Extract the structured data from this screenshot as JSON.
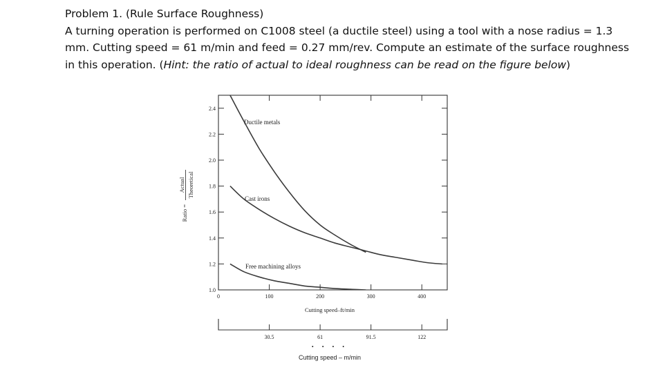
{
  "problem": {
    "title": "Problem 1. (Rule Surface Roughness)",
    "line1": "A turning operation is performed on C1008 steel (a ductile steel) using a tool with a nose radius = 1.3",
    "line2": "mm. Cutting speed = 61 m/min and feed = 0.27 mm/rev. Compute an estimate of the surface roughness",
    "line3_prefix": "in this operation. (",
    "line3_hint": "Hint: the ratio of actual to ideal roughness can be read on the figure below",
    "line3_suffix": ")"
  },
  "chart_data": {
    "type": "line",
    "title": "",
    "xlabel": "Cutting speed–ft/min",
    "ylabel_prefix": "Ratio =",
    "ylabel_numerator": "Actual",
    "ylabel_denominator": "Theoretical",
    "xlim": [
      0,
      450
    ],
    "ylim": [
      1.0,
      2.5
    ],
    "x_ticks": [
      0,
      100,
      200,
      300,
      400
    ],
    "x_tick_labels": [
      "0",
      "100",
      "200",
      "300",
      "400"
    ],
    "y_ticks": [
      1.0,
      1.2,
      1.4,
      1.6,
      1.8,
      2.0,
      2.2,
      2.4
    ],
    "y_tick_labels": [
      "1.0",
      "1.2",
      "1.4",
      "1.6",
      "1.8",
      "2.0",
      "2.2",
      "2.4"
    ],
    "grid": false,
    "series": [
      {
        "name": "Ductile metals",
        "x": [
          23,
          50,
          80,
          110,
          140,
          170,
          200,
          230,
          260,
          290
        ],
        "y": [
          2.5,
          2.3,
          2.09,
          1.91,
          1.75,
          1.61,
          1.5,
          1.42,
          1.35,
          1.29
        ]
      },
      {
        "name": "Cast irons",
        "x": [
          23,
          50,
          80,
          110,
          140,
          170,
          200,
          230,
          260,
          290,
          320,
          350,
          380,
          410,
          440
        ],
        "y": [
          1.8,
          1.7,
          1.62,
          1.55,
          1.49,
          1.44,
          1.4,
          1.36,
          1.33,
          1.3,
          1.27,
          1.25,
          1.23,
          1.21,
          1.2
        ]
      },
      {
        "name": "Free machining alloys",
        "x": [
          23,
          50,
          80,
          110,
          140,
          170,
          200,
          230,
          260,
          290
        ],
        "y": [
          1.2,
          1.14,
          1.1,
          1.07,
          1.05,
          1.03,
          1.02,
          1.01,
          1.005,
          1.0
        ]
      }
    ],
    "secondary_axis": {
      "label": "Cutting speed – m/min",
      "ticks_ft": [
        100,
        200,
        300,
        400
      ],
      "tick_labels": [
        "30.5",
        "61",
        "91.5",
        "122"
      ]
    }
  }
}
